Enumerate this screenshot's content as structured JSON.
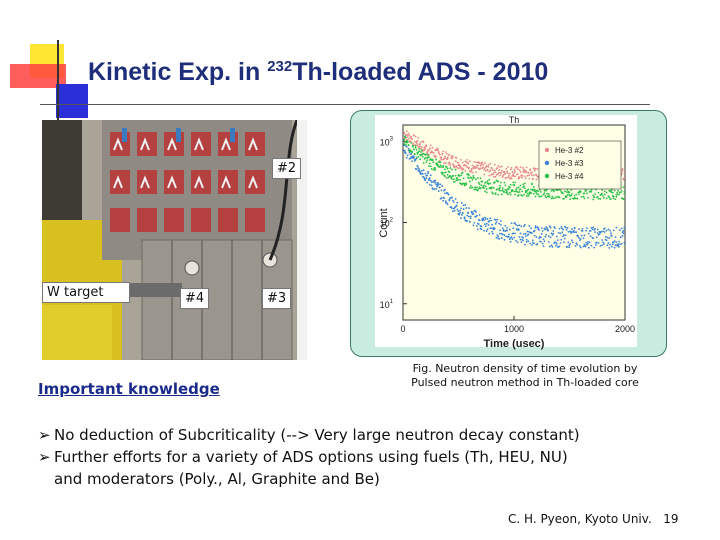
{
  "title": {
    "prefix": "Kinetic Exp. in ",
    "superscript": "232",
    "suffix": "Th-loaded ADS - 2010"
  },
  "photo_labels": {
    "core_2": "#2",
    "w_target": "W target",
    "core_4": "#4",
    "core_3": "#3"
  },
  "chart_data": {
    "type": "scatter",
    "title": "Th",
    "xlabel": "Time (usec)",
    "ylabel": "Count",
    "x_ticks": [
      "0",
      "1000",
      "2000"
    ],
    "y_ticks": [
      "10",
      "10",
      "10"
    ],
    "y_tick_exponents": [
      "3",
      "2",
      "1"
    ],
    "xlim": [
      0,
      2000
    ],
    "ylim_log10": [
      0.8,
      3.2
    ],
    "series": [
      {
        "name": "He-3 #2",
        "color": "#e8868a",
        "amplitude": 900,
        "decay": 0.0034,
        "background": 380
      },
      {
        "name": "He-3 #3",
        "color": "#3a82d8",
        "amplitude": 780,
        "decay": 0.0044,
        "background": 65
      },
      {
        "name": "He-3 #4",
        "color": "#28c048",
        "amplitude": 800,
        "decay": 0.0037,
        "background": 235
      }
    ]
  },
  "caption": {
    "line1": "Fig. Neutron density of time evolution by",
    "line2": "Pulsed neutron method in Th-loaded core"
  },
  "subheading": "Important knowledge",
  "bullets": [
    {
      "line1": "No deduction of Subcriticality (--> Very large neutron decay constant)"
    },
    {
      "line1": "Further efforts for a variety of ADS options using fuels (Th, HEU, NU)",
      "line2": "and moderators (Poly., Al, Graphite and Be)"
    }
  ],
  "footer": {
    "author": "C. H. Pyeon, Kyoto Univ.",
    "page": "19"
  },
  "colors": {
    "title": "#1f2e7a",
    "deco_yellow": "#ffe633",
    "deco_red": "#ff3a3a",
    "deco_blue": "#2a2fd8"
  }
}
